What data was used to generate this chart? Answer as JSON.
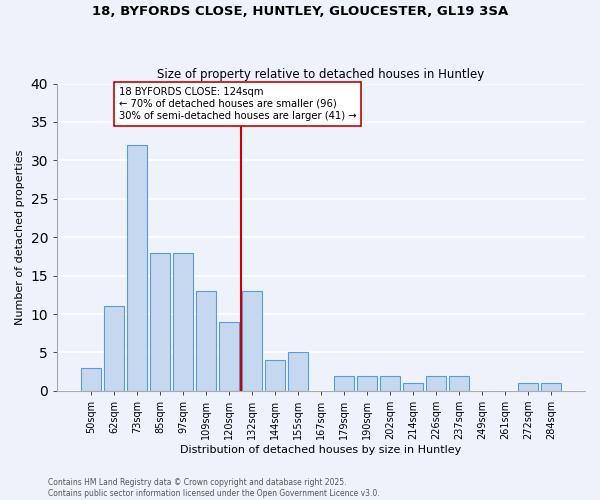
{
  "title": "18, BYFORDS CLOSE, HUNTLEY, GLOUCESTER, GL19 3SA",
  "subtitle": "Size of property relative to detached houses in Huntley",
  "xlabel": "Distribution of detached houses by size in Huntley",
  "ylabel": "Number of detached properties",
  "bar_labels": [
    "50sqm",
    "62sqm",
    "73sqm",
    "85sqm",
    "97sqm",
    "109sqm",
    "120sqm",
    "132sqm",
    "144sqm",
    "155sqm",
    "167sqm",
    "179sqm",
    "190sqm",
    "202sqm",
    "214sqm",
    "226sqm",
    "237sqm",
    "249sqm",
    "261sqm",
    "272sqm",
    "284sqm"
  ],
  "bar_values": [
    3,
    11,
    32,
    18,
    18,
    13,
    9,
    13,
    4,
    5,
    0,
    2,
    2,
    2,
    1,
    2,
    2,
    0,
    0,
    1,
    1
  ],
  "bar_color": "#c5d8f0",
  "bar_edge_color": "#5b9bd5",
  "vline_x": 6.5,
  "vline_color": "#cc0000",
  "annotation_box_text": "18 BYFORDS CLOSE: 124sqm\n← 70% of detached houses are smaller (96)\n30% of semi-detached houses are larger (41) →",
  "ylim": [
    0,
    40
  ],
  "yticks": [
    0,
    5,
    10,
    15,
    20,
    25,
    30,
    35,
    40
  ],
  "bg_color": "#eef2fb",
  "grid_color": "#ffffff",
  "footer_line1": "Contains HM Land Registry data © Crown copyright and database right 2025.",
  "footer_line2": "Contains public sector information licensed under the Open Government Licence v3.0."
}
